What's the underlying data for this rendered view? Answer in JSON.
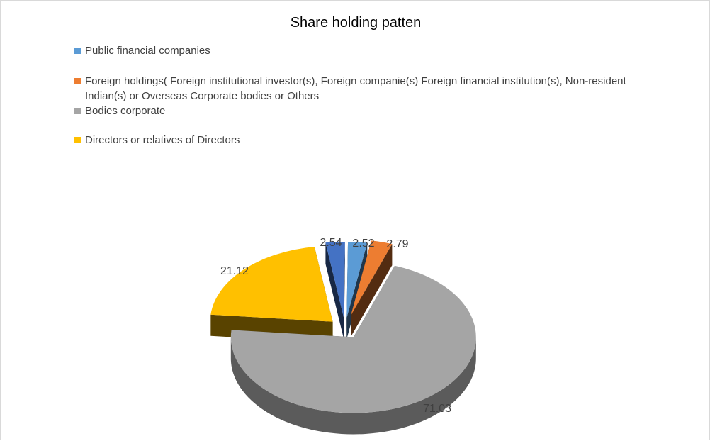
{
  "chart_data": {
    "type": "pie",
    "title": "Share holding patten",
    "style": "3d-exploded",
    "legend_position": "top",
    "series": [
      {
        "name": "Public financial companies",
        "value": 2.52,
        "label": "2.52",
        "color": "#5b9bd5"
      },
      {
        "name": "Foreign holdings( Foreign institutional investor(s), Foreign companie(s) Foreign financial institution(s), Non-resident Indian(s) or Overseas Corporate bodies or Others",
        "value": 2.79,
        "label": "2.79",
        "color": "#ed7d31"
      },
      {
        "name": "Bodies corporate",
        "value": 71.03,
        "label": "71.03",
        "color": "#a5a5a5"
      },
      {
        "name": "Directors or relatives of Directors",
        "value": 21.12,
        "label": "21.12",
        "color": "#ffc000"
      },
      {
        "name": "",
        "value": 2.54,
        "label": "2.54",
        "color": "#4472c4"
      }
    ]
  }
}
